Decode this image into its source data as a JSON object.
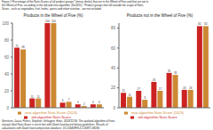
{
  "title": [
    "Figure 1  Percentage of the Nutri-Scores of all product groups* (minus drinks) that are in the Wheel of Five and that are not in",
    "the Wheel of Five, according to the old and new algorithm. (N=1811) * Product groups that fall outside the scope of Nutri-",
    "Score - such as vegetables, fruit, herbs, spices and infant nutrition - are not included."
  ],
  "caption": [
    "Gerritsen, Jacco; Peters, Stephan; Verhagen, Hans. 2023/11/14: The updated algorithm of front-",
    "of-pack label Nutri-Score is not in line with Dutch food-based dietary guidelines. Results of",
    "calculations with Dutch food composition database.  10.13140/RG.2.2.30871.96165"
  ],
  "chart_data": [
    {
      "type": "bar",
      "title": "Products in the Wheel of Five (%)",
      "categories": [
        null,
        null,
        null,
        null,
        null,
        null
      ],
      "series": [
        {
          "name": "old algorithm Nutri-Score",
          "color": "#cc2222",
          "values": [
            71,
            11,
            100,
            6,
            4,
            4
          ]
        },
        {
          "name": "new algorithm Nutri-Score (2023)",
          "color": "#cc8833",
          "values": [
            69,
            11,
            100,
            7,
            2,
            4
          ]
        }
      ],
      "ylim": [
        0,
        100
      ],
      "yticks": [
        0,
        20,
        40,
        60,
        80,
        100
      ],
      "data_labels": true,
      "legend": "bottom"
    },
    {
      "type": "bar",
      "title": "Products not in the Wheel of Five (%)",
      "categories": [
        null,
        null,
        null,
        null,
        null,
        null
      ],
      "series": [
        {
          "name": "old algorithm Nutri-Score",
          "color": "#cc2222",
          "values": [
            15,
            17,
            26,
            35,
            18,
            82
          ]
        },
        {
          "name": "new algorithm Nutri-Score (2023)",
          "color": "#cc8833",
          "values": [
            11,
            8,
            17,
            33,
            18,
            82
          ]
        }
      ],
      "ylim": [
        0,
        85
      ],
      "yticks": [
        0,
        20,
        40,
        60,
        80
      ],
      "data_labels": true,
      "legend": "bottom"
    }
  ]
}
